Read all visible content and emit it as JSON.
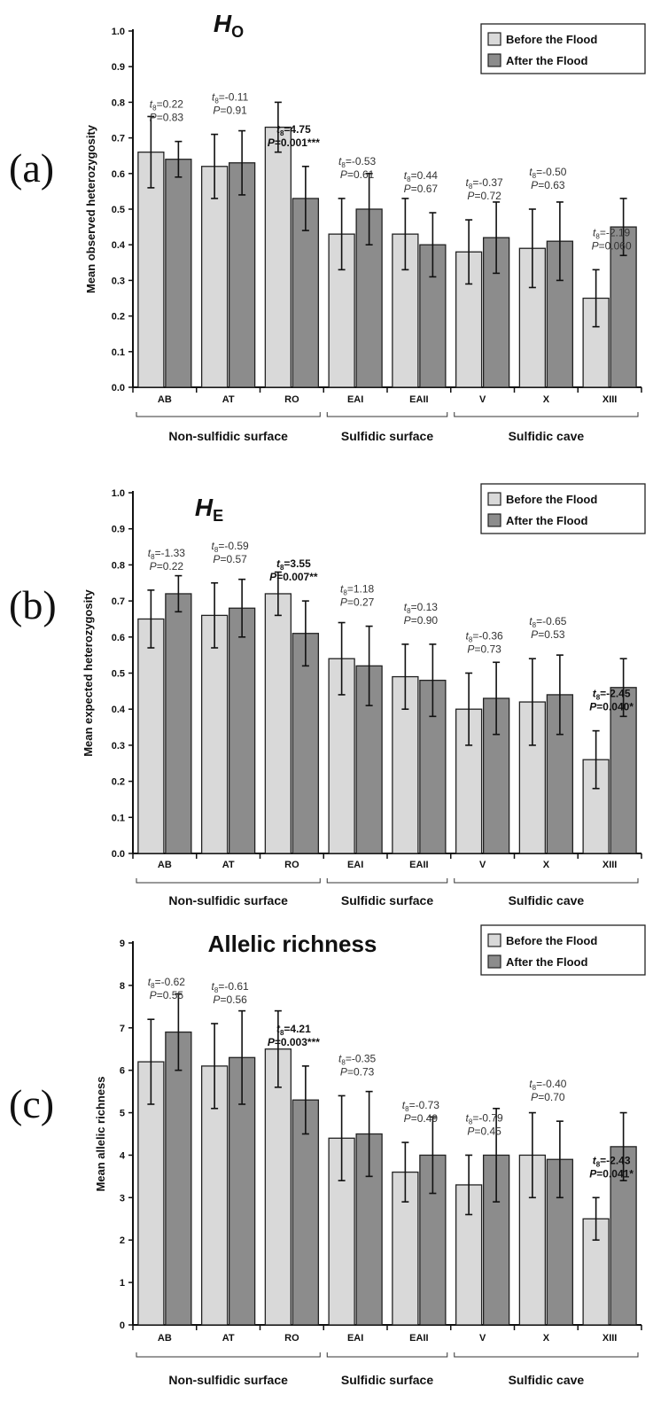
{
  "chart_data": [
    {
      "type": "bar",
      "panel_label": "(a)",
      "title": "H",
      "title_subscript": "O",
      "ylabel": "Mean observed heterozygosity",
      "ylim": [
        0,
        1.0
      ],
      "yticks": [
        "0.0",
        "0.1",
        "0.2",
        "0.3",
        "0.4",
        "0.5",
        "0.6",
        "0.7",
        "0.8",
        "0.9",
        "1.0"
      ],
      "legend_position": "top-right",
      "categories": [
        "AB",
        "AT",
        "RO",
        "EAI",
        "EAII",
        "V",
        "X",
        "XIII"
      ],
      "groups": [
        {
          "label": "Non-sulfidic surface",
          "categories": [
            "AB",
            "AT",
            "RO"
          ]
        },
        {
          "label": "Sulfidic surface",
          "categories": [
            "EAI",
            "EAII"
          ]
        },
        {
          "label": "Sulfidic cave",
          "categories": [
            "V",
            "X",
            "XIII"
          ]
        }
      ],
      "series": [
        {
          "name": "Before the Flood",
          "color": "#d9d9d9",
          "values": [
            0.66,
            0.62,
            0.73,
            0.43,
            0.43,
            0.38,
            0.39,
            0.25
          ],
          "errors": [
            0.1,
            0.09,
            0.07,
            0.1,
            0.1,
            0.09,
            0.11,
            0.08
          ]
        },
        {
          "name": "After the Flood",
          "color": "#8c8c8c",
          "values": [
            0.64,
            0.63,
            0.53,
            0.5,
            0.4,
            0.42,
            0.41,
            0.45
          ],
          "errors": [
            0.05,
            0.09,
            0.09,
            0.1,
            0.09,
            0.1,
            0.11,
            0.08
          ]
        }
      ],
      "annotations": [
        {
          "category": "AB",
          "t": "=0.22",
          "p": "=0.83",
          "bold": false
        },
        {
          "category": "AT",
          "t": "=-0.11",
          "p": "=0.91",
          "bold": false
        },
        {
          "category": "RO",
          "t": "=4.75",
          "p": "=0.001***",
          "bold": true
        },
        {
          "category": "EAI",
          "t": "=-0.53",
          "p": "=0.61",
          "bold": false
        },
        {
          "category": "EAII",
          "t": "=0.44",
          "p": "=0.67",
          "bold": false
        },
        {
          "category": "V",
          "t": "=-0.37",
          "p": "=0.72",
          "bold": false
        },
        {
          "category": "X",
          "t": "=-0.50",
          "p": "=0.63",
          "bold": false
        },
        {
          "category": "XIII",
          "t": "=-2.19",
          "p": "=0.060",
          "bold": false
        }
      ]
    },
    {
      "type": "bar",
      "panel_label": "(b)",
      "title": "H",
      "title_subscript": "E",
      "ylabel": "Mean expected heterozygosity",
      "ylim": [
        0,
        1.0
      ],
      "yticks": [
        "0.0",
        "0.1",
        "0.2",
        "0.3",
        "0.4",
        "0.5",
        "0.6",
        "0.7",
        "0.8",
        "0.9",
        "1.0"
      ],
      "legend_position": "top-right",
      "categories": [
        "AB",
        "AT",
        "RO",
        "EAI",
        "EAII",
        "V",
        "X",
        "XIII"
      ],
      "groups": [
        {
          "label": "Non-sulfidic surface",
          "categories": [
            "AB",
            "AT",
            "RO"
          ]
        },
        {
          "label": "Sulfidic surface",
          "categories": [
            "EAI",
            "EAII"
          ]
        },
        {
          "label": "Sulfidic cave",
          "categories": [
            "V",
            "X",
            "XIII"
          ]
        }
      ],
      "series": [
        {
          "name": "Before the Flood",
          "color": "#d9d9d9",
          "values": [
            0.65,
            0.66,
            0.72,
            0.54,
            0.49,
            0.4,
            0.42,
            0.26
          ],
          "errors": [
            0.08,
            0.09,
            0.06,
            0.1,
            0.09,
            0.1,
            0.12,
            0.08
          ]
        },
        {
          "name": "After the Flood",
          "color": "#8c8c8c",
          "values": [
            0.72,
            0.68,
            0.61,
            0.52,
            0.48,
            0.43,
            0.44,
            0.46
          ],
          "errors": [
            0.05,
            0.08,
            0.09,
            0.11,
            0.1,
            0.1,
            0.11,
            0.08
          ]
        }
      ],
      "annotations": [
        {
          "category": "AB",
          "t": "=-1.33",
          "p": "=0.22",
          "bold": false
        },
        {
          "category": "AT",
          "t": "=-0.59",
          "p": "=0.57",
          "bold": false
        },
        {
          "category": "RO",
          "t": "=3.55",
          "p": "=0.007**",
          "bold": true
        },
        {
          "category": "EAI",
          "t": "=1.18",
          "p": "=0.27",
          "bold": false
        },
        {
          "category": "EAII",
          "t": "=0.13",
          "p": "=0.90",
          "bold": false
        },
        {
          "category": "V",
          "t": "=-0.36",
          "p": "=0.73",
          "bold": false
        },
        {
          "category": "X",
          "t": "=-0.65",
          "p": "=0.53",
          "bold": false
        },
        {
          "category": "XIII",
          "t": "=-2.45",
          "p": "=0.040*",
          "bold": true
        }
      ]
    },
    {
      "type": "bar",
      "panel_label": "(c)",
      "title": "Allelic richness",
      "title_subscript": "",
      "ylabel": "Mean allelic richness",
      "ylim": [
        0,
        9
      ],
      "yticks": [
        "0",
        "1",
        "2",
        "3",
        "4",
        "5",
        "6",
        "7",
        "8",
        "9"
      ],
      "legend_position": "top-right",
      "categories": [
        "AB",
        "AT",
        "RO",
        "EAI",
        "EAII",
        "V",
        "X",
        "XIII"
      ],
      "groups": [
        {
          "label": "Non-sulfidic surface",
          "categories": [
            "AB",
            "AT",
            "RO"
          ]
        },
        {
          "label": "Sulfidic surface",
          "categories": [
            "EAI",
            "EAII"
          ]
        },
        {
          "label": "Sulfidic cave",
          "categories": [
            "V",
            "X",
            "XIII"
          ]
        }
      ],
      "series": [
        {
          "name": "Before the Flood",
          "color": "#d9d9d9",
          "values": [
            6.2,
            6.1,
            6.5,
            4.4,
            3.6,
            3.3,
            4.0,
            2.5
          ],
          "errors": [
            1.0,
            1.0,
            0.9,
            1.0,
            0.7,
            0.7,
            1.0,
            0.5
          ]
        },
        {
          "name": "After the Flood",
          "color": "#8c8c8c",
          "values": [
            6.9,
            6.3,
            5.3,
            4.5,
            4.0,
            4.0,
            3.9,
            4.2
          ],
          "errors": [
            0.9,
            1.1,
            0.8,
            1.0,
            0.9,
            1.1,
            0.9,
            0.8
          ]
        }
      ],
      "annotations": [
        {
          "category": "AB",
          "t": "=-0.62",
          "p": "=0.55",
          "bold": false
        },
        {
          "category": "AT",
          "t": "=-0.61",
          "p": "=0.56",
          "bold": false
        },
        {
          "category": "RO",
          "t": "=4.21",
          "p": "=0.003***",
          "bold": true
        },
        {
          "category": "EAI",
          "t": "=-0.35",
          "p": "=0.73",
          "bold": false
        },
        {
          "category": "EAII",
          "t": "=-0.73",
          "p": "=0.49",
          "bold": false
        },
        {
          "category": "V",
          "t": "=-0.79",
          "p": "=0.45",
          "bold": false
        },
        {
          "category": "X",
          "t": "=-0.40",
          "p": "=0.70",
          "bold": false
        },
        {
          "category": "XIII",
          "t": "=-2.43",
          "p": "=0.041*",
          "bold": true
        }
      ]
    }
  ]
}
